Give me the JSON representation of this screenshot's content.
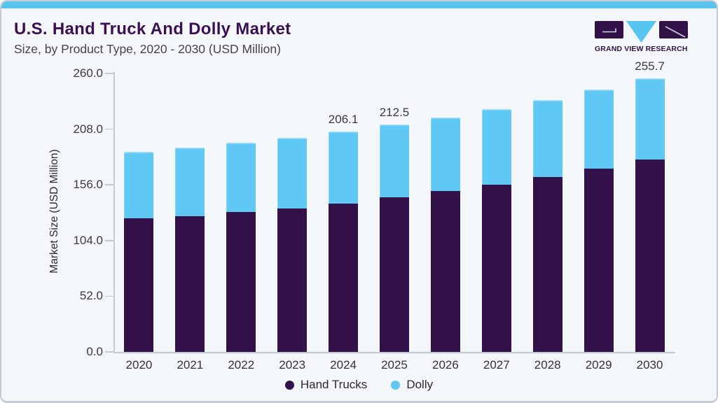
{
  "header": {
    "title": "U.S. Hand Truck And Dolly Market",
    "subtitle": "Size, by Product Type, 2020 - 2030 (USD Million)",
    "logo_text": "GRAND VIEW RESEARCH"
  },
  "colors": {
    "hand_trucks": "#321249",
    "dolly": "#5fc8f4",
    "accent_strip": "#5bc4ee",
    "title_text": "#3b1053",
    "card_background": "#f3f7fa"
  },
  "chart_data": {
    "type": "bar",
    "stacked": true,
    "title": "U.S. Hand Truck And Dolly Market Size, by Product Type, 2020 - 2030 (USD Million)",
    "categories": [
      "2020",
      "2021",
      "2022",
      "2023",
      "2024",
      "2025",
      "2026",
      "2027",
      "2028",
      "2029",
      "2030"
    ],
    "series": [
      {
        "name": "Hand Trucks",
        "color": "#321249",
        "values": [
          124.5,
          126.7,
          130.8,
          134.2,
          138.6,
          144.2,
          150.1,
          156.3,
          163.5,
          170.9,
          179.4
        ]
      },
      {
        "name": "Dolly",
        "color": "#5fc8f4",
        "values": [
          62.4,
          64.0,
          64.4,
          65.8,
          67.5,
          68.3,
          68.9,
          70.7,
          71.7,
          74.2,
          76.3
        ]
      }
    ],
    "total_labels": [
      {
        "category": "2024",
        "text": "206.1"
      },
      {
        "category": "2025",
        "text": "212.5"
      },
      {
        "category": "2030",
        "text": "255.7"
      }
    ],
    "xlabel": "",
    "ylabel": "Market Size (USD Million)",
    "yticks": [
      0.0,
      52.0,
      104.0,
      156.0,
      208.0,
      260.0
    ],
    "ylim": [
      0,
      260
    ],
    "grid": false,
    "legend_position": "bottom"
  }
}
